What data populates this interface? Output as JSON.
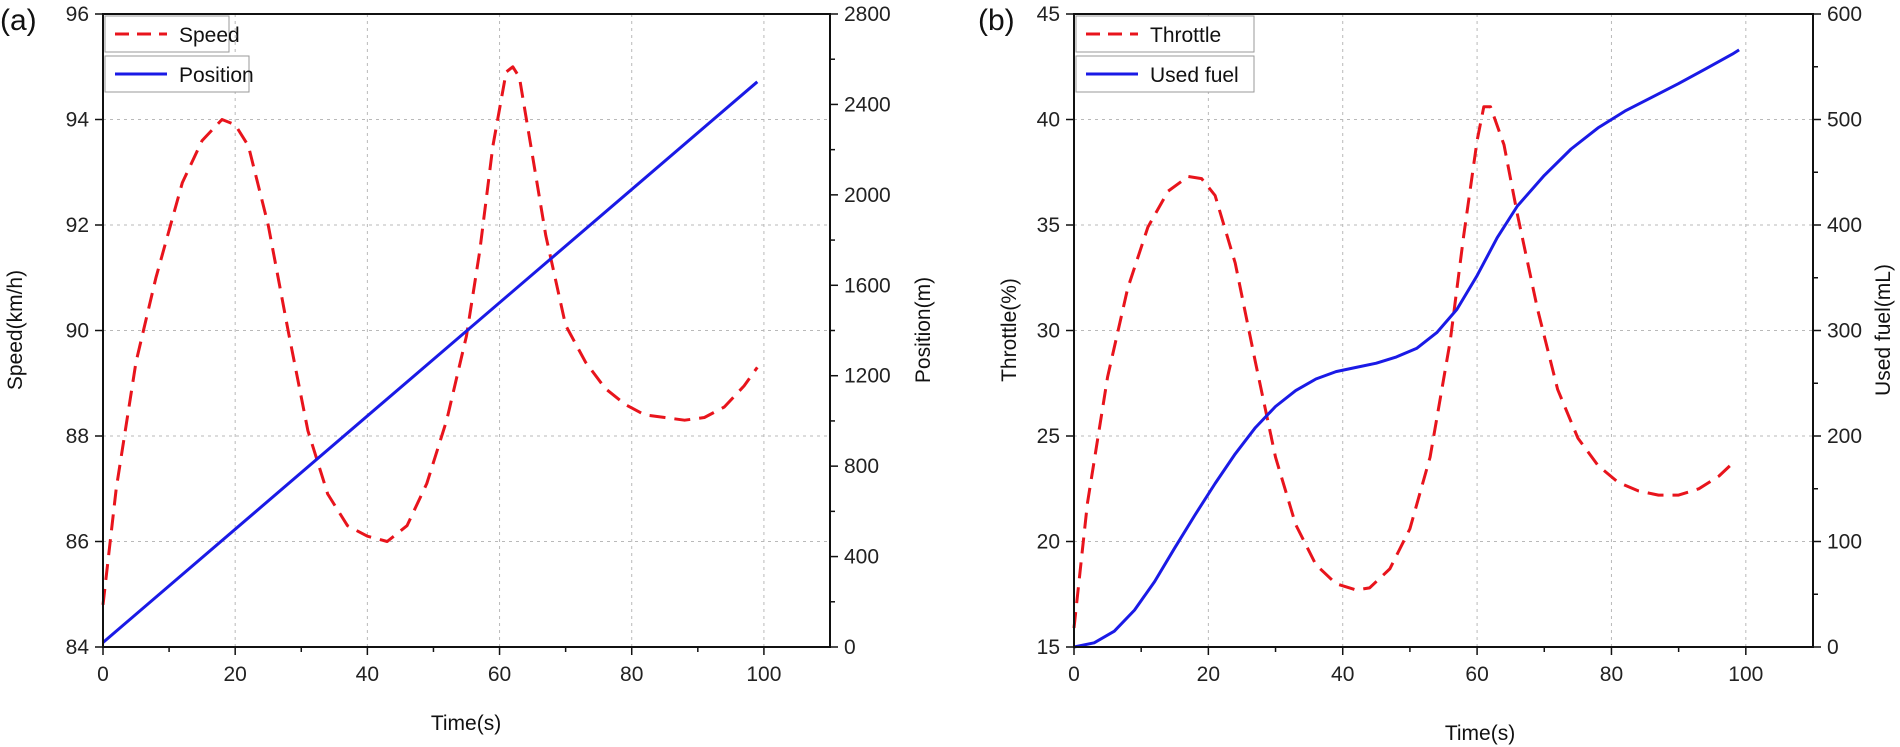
{
  "chart_data": [
    {
      "type": "line",
      "panel_label": "(a)",
      "xlabel": "Time(s)",
      "ylabel_left": "Speed(km/h)",
      "ylabel_right": "Position(m)",
      "xlim": [
        0,
        110
      ],
      "x_ticks": [
        0,
        20,
        40,
        60,
        80,
        100
      ],
      "ylim_left": [
        84,
        96
      ],
      "y_ticks_left": [
        84,
        86,
        88,
        90,
        92,
        94,
        96
      ],
      "ylim_right": [
        0,
        2800
      ],
      "y_ticks_right": [
        0,
        400,
        800,
        1200,
        1600,
        2000,
        2400,
        2800
      ],
      "grid": true,
      "legend_position": "top-left",
      "series": [
        {
          "name": "Speed",
          "axis": "left",
          "style": "dashed",
          "color": "#e8141c",
          "x": [
            0,
            2,
            5,
            8,
            12,
            15,
            18,
            20,
            22,
            25,
            28,
            31,
            34,
            37,
            40,
            43,
            46,
            49,
            52,
            55,
            57,
            59,
            61,
            62,
            63,
            65,
            67,
            70,
            73,
            76,
            79,
            82,
            85,
            88,
            91,
            94,
            97,
            99
          ],
          "y": [
            84.8,
            87.0,
            89.4,
            91.0,
            92.8,
            93.6,
            94.0,
            93.9,
            93.5,
            92.0,
            90.0,
            88.1,
            86.9,
            86.3,
            86.1,
            86.0,
            86.3,
            87.1,
            88.3,
            89.9,
            91.5,
            93.5,
            94.9,
            95.0,
            94.8,
            93.3,
            91.8,
            90.1,
            89.4,
            88.9,
            88.6,
            88.4,
            88.35,
            88.3,
            88.35,
            88.55,
            88.95,
            89.3
          ]
        },
        {
          "name": "Position",
          "axis": "right",
          "style": "solid",
          "color": "#1a1ae6",
          "x": [
            0,
            99
          ],
          "y": [
            20,
            2500
          ]
        }
      ]
    },
    {
      "type": "line",
      "panel_label": "(b)",
      "xlabel": "Time(s)",
      "ylabel_left": "Throttle(%)",
      "ylabel_right": "Used fuel(mL)",
      "xlim": [
        0,
        110
      ],
      "x_ticks": [
        0,
        20,
        40,
        60,
        80,
        100
      ],
      "ylim_left": [
        15,
        45
      ],
      "y_ticks_left": [
        15,
        20,
        25,
        30,
        35,
        40,
        45
      ],
      "ylim_right": [
        0,
        600
      ],
      "y_ticks_right": [
        0,
        100,
        200,
        300,
        400,
        500,
        600
      ],
      "grid": true,
      "legend_position": "top-left",
      "series": [
        {
          "name": "Throttle",
          "axis": "left",
          "style": "dashed",
          "color": "#e8141c",
          "x": [
            0,
            2,
            5,
            8,
            11,
            14,
            17,
            19,
            21,
            24,
            27,
            30,
            33,
            36,
            39,
            42,
            44,
            47,
            50,
            53,
            56,
            58,
            60,
            61,
            62,
            64,
            66,
            69,
            72,
            75,
            78,
            81,
            84,
            87,
            90,
            93,
            96,
            98
          ],
          "y": [
            15.9,
            21.8,
            27.8,
            32.0,
            34.9,
            36.6,
            37.3,
            37.2,
            36.4,
            33.2,
            28.5,
            24.0,
            20.8,
            18.9,
            18.0,
            17.7,
            17.8,
            18.7,
            20.6,
            24.0,
            29.5,
            34.5,
            39.0,
            40.6,
            40.6,
            38.8,
            35.5,
            31.0,
            27.2,
            24.9,
            23.6,
            22.8,
            22.4,
            22.2,
            22.2,
            22.5,
            23.1,
            23.7
          ]
        },
        {
          "name": "Used fuel",
          "axis": "right",
          "style": "solid",
          "color": "#1a1ae6",
          "x": [
            0,
            3,
            6,
            9,
            12,
            15,
            18,
            21,
            24,
            27,
            30,
            33,
            36,
            39,
            42,
            45,
            48,
            51,
            54,
            57,
            60,
            63,
            66,
            70,
            74,
            78,
            82,
            86,
            90,
            94,
            98,
            99
          ],
          "y": [
            0,
            4,
            15,
            35,
            62,
            94,
            125,
            155,
            183,
            208,
            228,
            243,
            254,
            261,
            265,
            269,
            275,
            283,
            298,
            320,
            352,
            388,
            418,
            447,
            472,
            492,
            508,
            521,
            534,
            548,
            562,
            566
          ]
        }
      ]
    }
  ]
}
